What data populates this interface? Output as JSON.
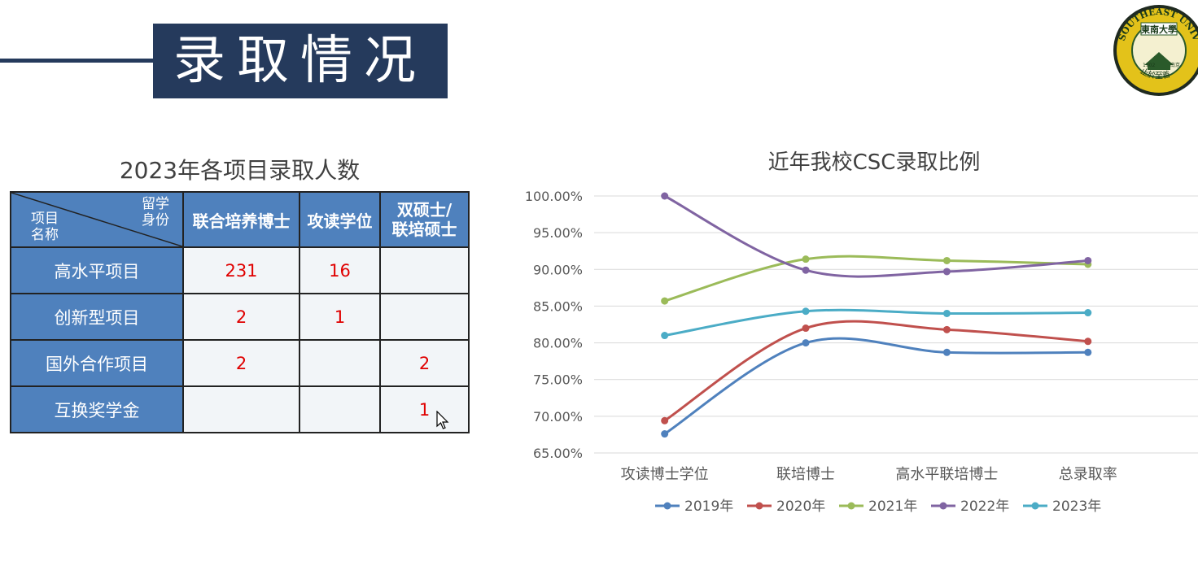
{
  "slide": {
    "title": "录取情况"
  },
  "logo": {
    "text": "SOUTHEAST UNIV",
    "chinese": "東南大學",
    "year": "1902",
    "city": "南京",
    "motto": "止於至善"
  },
  "table": {
    "title": "2023年各项目录取人数",
    "corner_top": [
      "留学",
      "身份"
    ],
    "corner_bottom": [
      "项目",
      "名称"
    ],
    "columns": [
      "联合培养博士",
      "攻读学位",
      [
        "双硕士/",
        "联培硕士"
      ]
    ],
    "rows": [
      {
        "label": "高水平项目",
        "values": [
          "231",
          "16",
          ""
        ]
      },
      {
        "label": "创新型项目",
        "values": [
          "2",
          "1",
          ""
        ]
      },
      {
        "label": "国外合作项目",
        "values": [
          "2",
          "",
          "2"
        ]
      },
      {
        "label": "互换奖学金",
        "values": [
          "",
          "",
          "1"
        ]
      }
    ]
  },
  "chart_data": {
    "type": "line",
    "title": "近年我校CSC录取比例",
    "categories": [
      "攻读博士学位",
      "联培博士",
      "高水平联培博士",
      "总录取率"
    ],
    "ylim": [
      65,
      100
    ],
    "yticks": [
      "65.00%",
      "70.00%",
      "75.00%",
      "80.00%",
      "85.00%",
      "90.00%",
      "95.00%",
      "100.00%"
    ],
    "grid": true,
    "smooth": true,
    "legend": "bottom",
    "series": [
      {
        "name": "2019年",
        "color": "#4f81bd",
        "values": [
          67.6,
          80.0,
          78.7,
          78.7
        ]
      },
      {
        "name": "2020年",
        "color": "#c0504d",
        "values": [
          69.4,
          82.0,
          81.8,
          80.2
        ]
      },
      {
        "name": "2021年",
        "color": "#9bbb59",
        "values": [
          85.7,
          91.4,
          91.2,
          90.7
        ]
      },
      {
        "name": "2022年",
        "color": "#8064a2",
        "values": [
          100.0,
          89.9,
          89.7,
          91.2
        ]
      },
      {
        "name": "2023年",
        "color": "#4bacc6",
        "values": [
          81.0,
          84.3,
          84.0,
          84.1
        ]
      }
    ]
  }
}
